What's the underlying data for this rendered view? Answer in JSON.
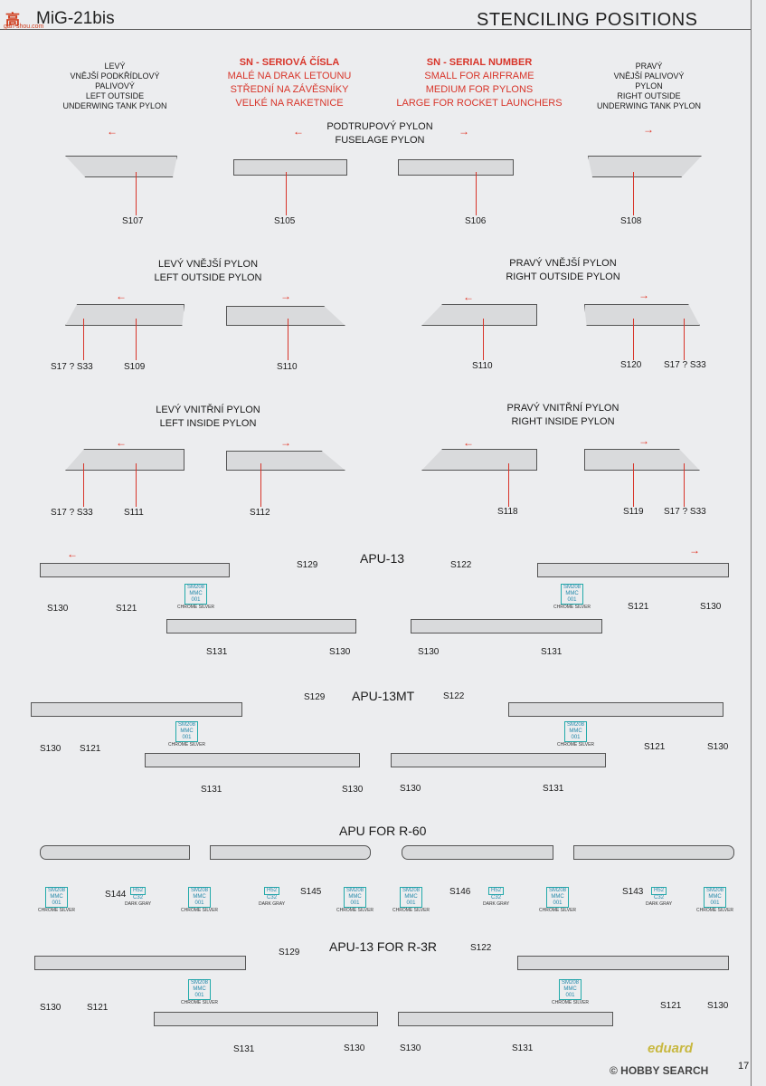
{
  "header": {
    "watermark_cn": "高",
    "watermark_url": "gan-shou.com",
    "model": "MiG-21bis",
    "title": "STENCILING POSITIONS"
  },
  "top_labels": {
    "left_cz": [
      "LEVÝ",
      "VNĚJŠÍ PODKŘÍDLOVÝ",
      "PALIVOVÝ"
    ],
    "left_en": [
      "LEFT OUTSIDE",
      "UNDERWING TANK PYLON"
    ],
    "sn_cz": [
      "SN - SERIOVÁ ČÍSLA",
      "MALÉ NA DRAK LETOUNU",
      "STŘEDNÍ NA ZÁVĚSNÍKY",
      "VELKÉ NA RAKETNICE"
    ],
    "sn_en": [
      "SN - SERIAL NUMBER",
      "SMALL FOR AIRFRAME",
      "MEDIUM FOR PYLONS",
      "LARGE FOR ROCKET LAUNCHERS"
    ],
    "right_cz": [
      "PRAVÝ",
      "VNĚJŠÍ PALIVOVÝ",
      "PYLON"
    ],
    "right_en": [
      "RIGHT OUTSIDE",
      "UNDERWING TANK PYLON"
    ],
    "fuselage": [
      "PODTRUPOVÝ PYLON",
      "FUSELAGE PYLON"
    ]
  },
  "row1_codes": [
    "S107",
    "S105",
    "S106",
    "S108"
  ],
  "outside": {
    "left": [
      "LEVÝ VNĚJŠÍ PYLON",
      "LEFT OUTSIDE PYLON"
    ],
    "right": [
      "PRAVÝ VNĚJŠÍ PYLON",
      "RIGHT OUTSIDE PYLON"
    ],
    "codes": [
      "S17 ? S33",
      "S109",
      "S110",
      "S110",
      "S120",
      "S17 ? S33"
    ]
  },
  "inside": {
    "left": [
      "LEVÝ VNITŘNÍ PYLON",
      "LEFT INSIDE PYLON"
    ],
    "right": [
      "PRAVÝ VNITŘNÍ PYLON",
      "RIGHT INSIDE PYLON"
    ],
    "codes": [
      "S17 ? S33",
      "S111",
      "S112",
      "S118",
      "S119",
      "S17 ? S33"
    ]
  },
  "apu13": {
    "title": "APU-13",
    "codes": [
      "S129",
      "S122",
      "S130",
      "S121",
      "S121",
      "S130",
      "S131",
      "S130",
      "S130",
      "S131"
    ]
  },
  "apu13mt": {
    "title": "APU-13MT",
    "codes": [
      "S129",
      "S122",
      "S130",
      "S121",
      "S121",
      "S130",
      "S131",
      "S130",
      "S130",
      "S131"
    ]
  },
  "apur60": {
    "title": "APU FOR R-60",
    "codes": [
      "S144",
      "S145",
      "S146",
      "S143"
    ]
  },
  "apu3r": {
    "title": "APU-13 FOR R-3R",
    "codes": [
      "S129",
      "S122",
      "S130",
      "S121",
      "S121",
      "S130",
      "S131",
      "S130",
      "S130",
      "S131"
    ]
  },
  "paint": {
    "chrome_code": "SM208",
    "chrome_mmc": "MMC",
    "chrome_num": "001",
    "chrome_name": "CHROME SILVER",
    "gray_code": "H52",
    "gray_c": "C32",
    "gray_name": "DARK GRAY"
  },
  "footer": {
    "brand": "eduard",
    "watermark": "© HOBBY SEARCH",
    "page": "17"
  },
  "colors": {
    "stencil_red": "#d8352a",
    "paint_cyan": "#2288aa",
    "background": "#ecedef"
  }
}
